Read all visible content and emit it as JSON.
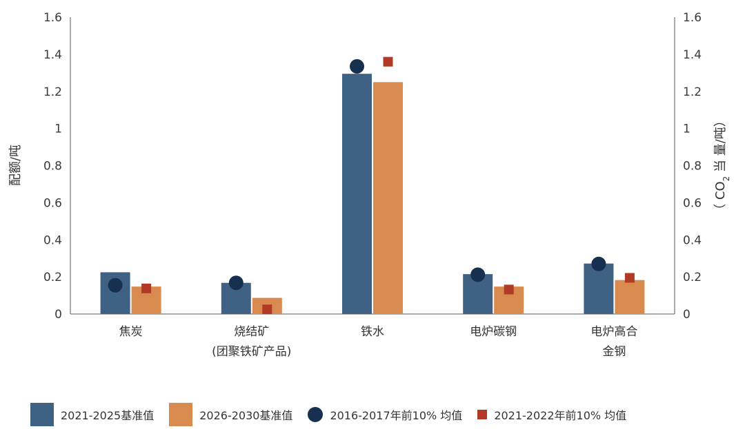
{
  "chart_data": {
    "type": "bar",
    "categories": [
      "焦炭",
      "烧结矿\n(团聚铁矿产品)",
      "铁水",
      "电炉碳钢",
      "电炉高合\n金钢"
    ],
    "series": [
      {
        "name": "2021-2025基准值",
        "kind": "bar",
        "color": "#3f6184",
        "values": [
          0.225,
          0.168,
          1.295,
          0.215,
          0.272
        ]
      },
      {
        "name": "2026-2030基准值",
        "kind": "bar",
        "color": "#d98a4f",
        "values": [
          0.148,
          0.087,
          1.25,
          0.148,
          0.183
        ]
      },
      {
        "name": "2016-2017年前10% 均值",
        "kind": "circle",
        "color": "#17304f",
        "values": [
          0.155,
          0.168,
          1.335,
          0.212,
          0.27
        ]
      },
      {
        "name": "2021-2022年前10% 均值",
        "kind": "square",
        "color": "#b03a24",
        "values": [
          0.138,
          0.025,
          1.36,
          0.132,
          0.195
        ]
      }
    ],
    "ylabel_left": "配额/吨",
    "ylabel_right_parts": [
      "（ CO",
      "2",
      " 当 量/吨）"
    ],
    "ylim": [
      0,
      1.6
    ],
    "yticks": [
      "0",
      "0.2",
      "0.4",
      "0.6",
      "0.8",
      "1",
      "1.2",
      "1.4",
      "1.6"
    ],
    "grid": false,
    "legend_position": "bottom"
  }
}
